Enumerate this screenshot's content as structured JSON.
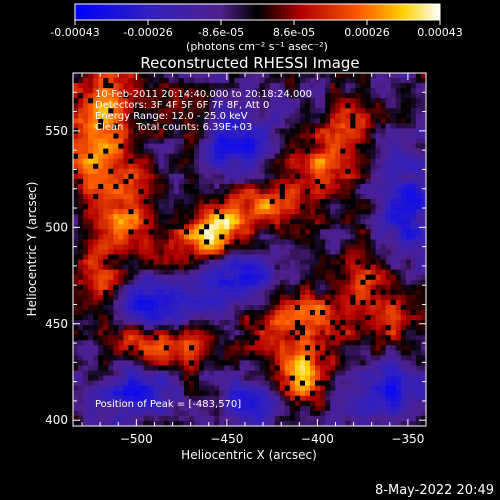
{
  "colorbar": {
    "tick_labels": [
      "-0.00043",
      "-0.00026",
      "-8.6e-05",
      "8.6e-05",
      "0.00026",
      "0.00043"
    ],
    "unit_label": "(photons cm⁻² s⁻¹ asec⁻²)",
    "range": [
      -0.00043,
      0.00043
    ]
  },
  "image_info": {
    "time_range": "10-Feb-2011 20:14:40.000 to 20:18:24.000",
    "detectors": "Detectors: 3F 4F 5F 6F 7F 8F, Att 0",
    "energy_range": "Energy Range: 12.0 - 25.0 keV",
    "method_counts": "Clean    Total counts: 6.39E+03",
    "peak": "Position of Peak = [-483,570]"
  },
  "footer": {
    "timestamp": "8-May-2022 20:49"
  },
  "chart_data": {
    "type": "heatmap",
    "title": "Reconstructed RHESSI Image",
    "xlabel": "Heliocentric X (arcsec)",
    "ylabel": "Heliocentric Y (arcsec)",
    "xlim": [
      -535,
      -340
    ],
    "ylim": [
      397,
      580
    ],
    "xticks": [
      -500,
      -450,
      -400,
      -350
    ],
    "xtick_labels": [
      "−500",
      "−450",
      "−400",
      "−350"
    ],
    "yticks": [
      400,
      450,
      500,
      550
    ],
    "ytick_labels": [
      "400",
      "450",
      "500",
      "550"
    ],
    "peak_position": [
      -483,
      570
    ],
    "bright_sources": [
      {
        "x": -520,
        "y": 548,
        "intensity": 0.00036,
        "sx": 14,
        "sy": 28
      },
      {
        "x": -505,
        "y": 505,
        "intensity": 0.0002,
        "sx": 10,
        "sy": 12
      },
      {
        "x": -470,
        "y": 492,
        "intensity": 0.00024,
        "sx": 16,
        "sy": 10
      },
      {
        "x": -430,
        "y": 512,
        "intensity": 0.0003,
        "sx": 18,
        "sy": 9
      },
      {
        "x": -455,
        "y": 498,
        "intensity": 0.00034,
        "sx": 9,
        "sy": 9
      },
      {
        "x": -400,
        "y": 530,
        "intensity": 0.00022,
        "sx": 12,
        "sy": 10
      },
      {
        "x": -412,
        "y": 452,
        "intensity": 0.00032,
        "sx": 22,
        "sy": 11
      },
      {
        "x": -410,
        "y": 422,
        "intensity": 0.0004,
        "sx": 10,
        "sy": 10
      },
      {
        "x": -475,
        "y": 440,
        "intensity": 0.00026,
        "sx": 14,
        "sy": 9
      },
      {
        "x": -500,
        "y": 440,
        "intensity": 0.00022,
        "sx": 10,
        "sy": 10
      },
      {
        "x": -375,
        "y": 470,
        "intensity": 0.00022,
        "sx": 8,
        "sy": 12
      },
      {
        "x": -385,
        "y": 548,
        "intensity": 0.00025,
        "sx": 10,
        "sy": 12
      },
      {
        "x": -355,
        "y": 455,
        "intensity": 0.00018,
        "sx": 8,
        "sy": 14
      },
      {
        "x": -520,
        "y": 475,
        "intensity": 0.00022,
        "sx": 9,
        "sy": 14
      },
      {
        "x": -470,
        "y": 555,
        "intensity": 0.00014,
        "sx": 10,
        "sy": 10
      }
    ],
    "dim_sources": [
      {
        "x": -490,
        "y": 460,
        "intensity": -0.00035,
        "sx": 14,
        "sy": 10
      },
      {
        "x": -445,
        "y": 470,
        "intensity": -0.00032,
        "sx": 16,
        "sy": 12
      },
      {
        "x": -445,
        "y": 545,
        "intensity": -0.0003,
        "sx": 14,
        "sy": 14
      },
      {
        "x": -360,
        "y": 415,
        "intensity": -0.00028,
        "sx": 14,
        "sy": 12
      },
      {
        "x": -500,
        "y": 415,
        "intensity": -0.00028,
        "sx": 14,
        "sy": 10
      },
      {
        "x": -350,
        "y": 510,
        "intensity": -0.00025,
        "sx": 10,
        "sy": 20
      },
      {
        "x": -435,
        "y": 410,
        "intensity": -0.00025,
        "sx": 14,
        "sy": 8
      }
    ],
    "grid": false
  }
}
